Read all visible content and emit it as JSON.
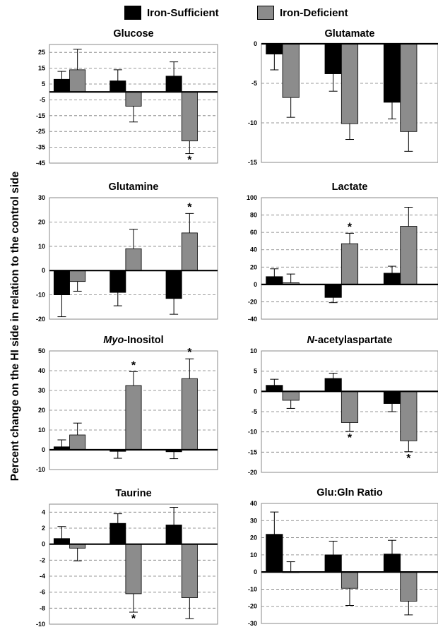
{
  "legend": [
    {
      "label": "Iron-Sufficient",
      "color": "#000000"
    },
    {
      "label": "Iron-Deficient",
      "color": "#8c8c8c"
    }
  ],
  "y_axis_label": "Percent change on the HI side in relation to the control side",
  "chart_data": [
    {
      "type": "bar",
      "title": "Glucose",
      "title_italic_prefix": "",
      "ylim": [
        -45,
        30
      ],
      "yticks": [
        25,
        15,
        5,
        -5,
        -15,
        -25,
        -35,
        -45
      ],
      "groups": 3,
      "series": [
        {
          "name": "Iron-Sufficient",
          "values": [
            8,
            7,
            10
          ],
          "errors": [
            5,
            7,
            9
          ]
        },
        {
          "name": "Iron-Deficient",
          "values": [
            14,
            -9,
            -31
          ],
          "errors": [
            13,
            10,
            8
          ]
        }
      ],
      "significance": [
        {
          "group": 2,
          "series": 1,
          "symbol": "*"
        }
      ]
    },
    {
      "type": "bar",
      "title": "Glutamate",
      "title_italic_prefix": "",
      "ylim": [
        -15,
        0
      ],
      "yticks": [
        0,
        -5,
        -10,
        -15
      ],
      "groups": 3,
      "series": [
        {
          "name": "Iron-Sufficient",
          "values": [
            -1.3,
            -3.8,
            -7.4
          ],
          "errors": [
            2.0,
            2.2,
            2.1
          ]
        },
        {
          "name": "Iron-Deficient",
          "values": [
            -6.8,
            -10.1,
            -11.1
          ],
          "errors": [
            2.5,
            2.0,
            2.5
          ]
        }
      ],
      "significance": []
    },
    {
      "type": "bar",
      "title": "Glutamine",
      "title_italic_prefix": "",
      "ylim": [
        -20,
        30
      ],
      "yticks": [
        30,
        20,
        10,
        0,
        -10,
        -20
      ],
      "groups": 3,
      "series": [
        {
          "name": "Iron-Sufficient",
          "values": [
            -10,
            -9,
            -11.5
          ],
          "errors": [
            9,
            5.5,
            6.5
          ]
        },
        {
          "name": "Iron-Deficient",
          "values": [
            -4.5,
            9,
            15.5
          ],
          "errors": [
            4,
            8,
            8
          ]
        }
      ],
      "significance": [
        {
          "group": 2,
          "series": 1,
          "symbol": "*"
        }
      ]
    },
    {
      "type": "bar",
      "title": "Lactate",
      "title_italic_prefix": "",
      "ylim": [
        -40,
        100
      ],
      "yticks": [
        100,
        80,
        60,
        40,
        20,
        0,
        -20,
        -40
      ],
      "groups": 3,
      "series": [
        {
          "name": "Iron-Sufficient",
          "values": [
            9,
            -15,
            13
          ],
          "errors": [
            9,
            6,
            8
          ]
        },
        {
          "name": "Iron-Deficient",
          "values": [
            2,
            47,
            67
          ],
          "errors": [
            10,
            12,
            22
          ]
        }
      ],
      "significance": [
        {
          "group": 1,
          "series": 1,
          "symbol": "*"
        }
      ]
    },
    {
      "type": "bar",
      "title": "-Inositol",
      "title_italic_prefix": "Myo",
      "ylim": [
        -10,
        50
      ],
      "yticks": [
        50,
        40,
        30,
        20,
        10,
        0,
        -10
      ],
      "groups": 3,
      "series": [
        {
          "name": "Iron-Sufficient",
          "values": [
            1.5,
            -0.8,
            -1
          ],
          "errors": [
            3.5,
            3.5,
            3.5
          ]
        },
        {
          "name": "Iron-Deficient",
          "values": [
            7.5,
            32.5,
            36
          ],
          "errors": [
            6,
            7,
            10
          ]
        }
      ],
      "significance": [
        {
          "group": 1,
          "series": 1,
          "symbol": "*"
        },
        {
          "group": 2,
          "series": 1,
          "symbol": "*"
        }
      ]
    },
    {
      "type": "bar",
      "title": "-acetylaspartate",
      "title_italic_prefix": "N",
      "ylim": [
        -20,
        10
      ],
      "yticks": [
        10,
        5,
        0,
        -5,
        -10,
        -15,
        -20
      ],
      "groups": 3,
      "series": [
        {
          "name": "Iron-Sufficient",
          "values": [
            1.5,
            3.2,
            -3
          ],
          "errors": [
            1.5,
            1.3,
            2
          ]
        },
        {
          "name": "Iron-Deficient",
          "values": [
            -2.2,
            -7.7,
            -12.2
          ],
          "errors": [
            2,
            2.2,
            2.7
          ]
        }
      ],
      "significance": [
        {
          "group": 1,
          "series": 1,
          "symbol": "*"
        },
        {
          "group": 2,
          "series": 1,
          "symbol": "*"
        }
      ]
    },
    {
      "type": "bar",
      "title": "Taurine",
      "title_italic_prefix": "",
      "ylim": [
        -10,
        5
      ],
      "yticks": [
        4,
        2,
        0,
        -2,
        -4,
        -6,
        -8,
        -10
      ],
      "groups": 3,
      "series": [
        {
          "name": "Iron-Sufficient",
          "values": [
            0.7,
            2.6,
            2.4
          ],
          "errors": [
            1.5,
            1.2,
            2.2
          ]
        },
        {
          "name": "Iron-Deficient",
          "values": [
            -0.5,
            -6.2,
            -6.7
          ],
          "errors": [
            1.6,
            2.3,
            2.6
          ]
        }
      ],
      "significance": [
        {
          "group": 1,
          "series": 1,
          "symbol": "*"
        }
      ]
    },
    {
      "type": "bar",
      "title": "Glu:Gln Ratio",
      "title_italic_prefix": "",
      "ylim": [
        -30,
        40
      ],
      "yticks": [
        40,
        30,
        20,
        10,
        0,
        -10,
        -20,
        -30
      ],
      "groups": 3,
      "series": [
        {
          "name": "Iron-Sufficient",
          "values": [
            22,
            10,
            10.5
          ],
          "errors": [
            13,
            8,
            8
          ]
        },
        {
          "name": "Iron-Deficient",
          "values": [
            0,
            -9.5,
            -17
          ],
          "errors": [
            6,
            10,
            8
          ]
        }
      ],
      "significance": []
    }
  ]
}
